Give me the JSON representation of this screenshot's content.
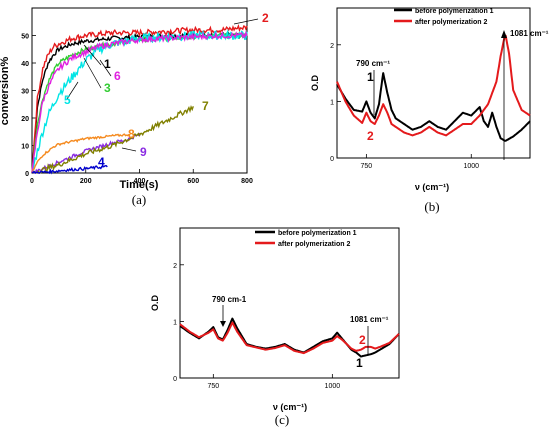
{
  "panel_labels": [
    "(a)",
    "(b)",
    "(c)"
  ],
  "chart_data": [
    {
      "type": "line",
      "panel": "(a)",
      "xlabel": "Time(s)",
      "ylabel": "conversion%",
      "xlim": [
        0,
        800
      ],
      "ylim": [
        0,
        60
      ],
      "xticks": [
        0,
        200,
        400,
        600,
        800
      ],
      "yticks": [
        0,
        10,
        20,
        30,
        40,
        50
      ],
      "series": [
        {
          "name": "1",
          "color": "#000000",
          "noise": 0.8,
          "label_color": "#000000",
          "x": [
            0,
            20,
            40,
            60,
            80,
            100,
            150,
            200,
            250,
            300,
            400,
            500,
            600,
            700,
            800
          ],
          "y": [
            0,
            24,
            34,
            40,
            43,
            45,
            47,
            48,
            48.5,
            49,
            49.5,
            50,
            50,
            50,
            50
          ]
        },
        {
          "name": "2",
          "color": "#e41a1c",
          "noise": 1.0,
          "label_color": "#e41a1c",
          "x": [
            0,
            20,
            40,
            60,
            80,
            100,
            150,
            200,
            250,
            300,
            400,
            500,
            600,
            700,
            800
          ],
          "y": [
            0,
            27,
            38,
            43,
            46,
            47,
            49,
            50,
            50.5,
            51,
            51,
            51.5,
            52,
            52,
            53
          ]
        },
        {
          "name": "3",
          "color": "#33cc33",
          "noise": 0.8,
          "label_color": "#33cc33",
          "x": [
            0,
            20,
            40,
            60,
            80,
            100,
            150,
            200,
            250,
            300,
            400,
            500,
            600,
            700,
            800
          ],
          "y": [
            0,
            18,
            27,
            33,
            37,
            40,
            43,
            45,
            46,
            47,
            48.5,
            49,
            49.5,
            50,
            50
          ]
        },
        {
          "name": "5",
          "color": "#00e5e5",
          "noise": 1.6,
          "label_color": "#00e5e5",
          "x": [
            0,
            20,
            40,
            60,
            80,
            100,
            150,
            200,
            250,
            300,
            400,
            500,
            600,
            700,
            800
          ],
          "y": [
            0,
            8,
            15,
            21,
            25,
            29,
            35,
            41,
            45,
            47,
            49,
            49.5,
            50,
            50,
            50
          ]
        },
        {
          "name": "6",
          "color": "#e020e0",
          "noise": 1.0,
          "label_color": "#e020e0",
          "x": [
            0,
            20,
            40,
            60,
            80,
            100,
            150,
            200,
            250,
            300,
            400,
            500,
            600,
            700,
            800
          ],
          "y": [
            0,
            15,
            26,
            31,
            35,
            38,
            42,
            44,
            46,
            47,
            48.5,
            49,
            49.5,
            50,
            50
          ]
        },
        {
          "name": "8",
          "color": "#f58a1f",
          "noise": 0.4,
          "label_color": "#f58a1f",
          "x": [
            0,
            20,
            40,
            60,
            80,
            100,
            150,
            200,
            250,
            300,
            360
          ],
          "y": [
            0,
            4,
            6.5,
            8,
            9.5,
            10.5,
            11.5,
            12.5,
            13,
            13.5,
            14
          ]
        },
        {
          "name": "9",
          "color": "#8a2be2",
          "noise": 0.6,
          "label_color": "#8a2be2",
          "x": [
            0,
            50,
            100,
            150,
            200,
            250,
            300,
            350,
            400
          ],
          "y": [
            0,
            2,
            4,
            6,
            8,
            9.5,
            11,
            12,
            14
          ]
        },
        {
          "name": "7",
          "color": "#808000",
          "noise": 0.9,
          "label_color": "#808000",
          "x": [
            0,
            100,
            200,
            300,
            400,
            500,
            600
          ],
          "y": [
            0,
            3,
            7,
            10,
            14,
            19,
            24
          ]
        },
        {
          "name": "4",
          "color": "#0000cc",
          "noise": 0.5,
          "label_color": "#0000cc",
          "x": [
            0,
            40,
            80,
            120,
            160,
            200,
            240,
            280
          ],
          "y": [
            0,
            0.3,
            0.6,
            1,
            1.3,
            1.6,
            2,
            2.3
          ]
        }
      ]
    },
    {
      "type": "line",
      "panel": "(b)",
      "xlabel": "ν (cm⁻¹)",
      "ylabel": "O.D",
      "xlim": [
        680,
        1140
      ],
      "ylim": [
        0,
        2.65
      ],
      "xticks": [
        750,
        1000
      ],
      "yticks": [
        0,
        1,
        2
      ],
      "legend": [
        "before polymerization 1",
        "after polymerization 2"
      ],
      "annotations": [
        "790 cm⁻¹",
        "1081 cm⁻¹",
        "1",
        "2"
      ],
      "series": [
        {
          "name": "before polymerization 1",
          "color": "#000000",
          "x": [
            680,
            700,
            720,
            740,
            750,
            760,
            770,
            780,
            790,
            800,
            810,
            820,
            840,
            860,
            880,
            900,
            920,
            940,
            960,
            980,
            1000,
            1020,
            1030,
            1040,
            1050,
            1060,
            1070,
            1081,
            1100,
            1120,
            1140
          ],
          "y": [
            1.3,
            1.05,
            0.85,
            0.82,
            1.0,
            0.8,
            0.7,
            0.95,
            1.5,
            1.15,
            0.85,
            0.7,
            0.6,
            0.5,
            0.55,
            0.65,
            0.55,
            0.5,
            0.65,
            0.8,
            0.75,
            0.9,
            0.65,
            0.55,
            0.8,
            0.55,
            0.35,
            0.3,
            0.38,
            0.5,
            0.65
          ]
        },
        {
          "name": "after polymerization 2",
          "color": "#e41a1c",
          "x": [
            680,
            700,
            720,
            740,
            750,
            760,
            770,
            780,
            790,
            800,
            810,
            820,
            840,
            860,
            880,
            900,
            920,
            940,
            960,
            980,
            1000,
            1020,
            1030,
            1040,
            1050,
            1060,
            1070,
            1081,
            1090,
            1100,
            1120,
            1140
          ],
          "y": [
            1.35,
            1.0,
            0.75,
            0.62,
            0.8,
            0.65,
            0.6,
            0.75,
            0.95,
            0.8,
            0.6,
            0.55,
            0.45,
            0.4,
            0.45,
            0.55,
            0.45,
            0.4,
            0.5,
            0.6,
            0.6,
            0.75,
            0.85,
            0.95,
            1.15,
            1.35,
            1.8,
            2.2,
            1.85,
            1.2,
            0.85,
            0.75
          ]
        }
      ]
    },
    {
      "type": "line",
      "panel": "(c)",
      "xlabel": "ν (cm⁻¹)",
      "ylabel": "O.D",
      "xlim": [
        680,
        1140
      ],
      "ylim": [
        0,
        2.65
      ],
      "xticks": [
        750,
        1000
      ],
      "yticks": [
        0,
        1,
        2
      ],
      "legend": [
        "before polymerization 1",
        "after polymerization 2"
      ],
      "annotations": [
        "790 cm-1",
        "1081 cm⁻¹",
        "1",
        "2"
      ],
      "series": [
        {
          "name": "before polymerization 1",
          "color": "#000000",
          "x": [
            680,
            700,
            720,
            740,
            750,
            760,
            770,
            780,
            790,
            800,
            820,
            840,
            860,
            880,
            900,
            920,
            940,
            960,
            980,
            1000,
            1010,
            1020,
            1030,
            1040,
            1050,
            1060,
            1070,
            1081,
            1090,
            1100,
            1120,
            1140
          ],
          "y": [
            0.92,
            0.8,
            0.7,
            0.82,
            0.9,
            0.72,
            0.68,
            0.85,
            1.05,
            0.88,
            0.6,
            0.55,
            0.52,
            0.55,
            0.6,
            0.5,
            0.45,
            0.55,
            0.65,
            0.7,
            0.8,
            0.7,
            0.6,
            0.5,
            0.45,
            0.38,
            0.4,
            0.42,
            0.45,
            0.5,
            0.6,
            0.78
          ]
        },
        {
          "name": "after polymerization 2",
          "color": "#e41a1c",
          "x": [
            680,
            700,
            720,
            740,
            750,
            760,
            770,
            780,
            790,
            800,
            820,
            840,
            860,
            880,
            900,
            920,
            940,
            960,
            980,
            1000,
            1010,
            1020,
            1030,
            1040,
            1050,
            1060,
            1070,
            1081,
            1090,
            1100,
            1120,
            1140
          ],
          "y": [
            0.95,
            0.82,
            0.72,
            0.8,
            0.86,
            0.7,
            0.66,
            0.8,
            0.98,
            0.82,
            0.58,
            0.54,
            0.5,
            0.53,
            0.58,
            0.48,
            0.44,
            0.52,
            0.62,
            0.66,
            0.74,
            0.68,
            0.6,
            0.52,
            0.48,
            0.5,
            0.55,
            0.55,
            0.52,
            0.55,
            0.62,
            0.78
          ]
        }
      ]
    }
  ]
}
